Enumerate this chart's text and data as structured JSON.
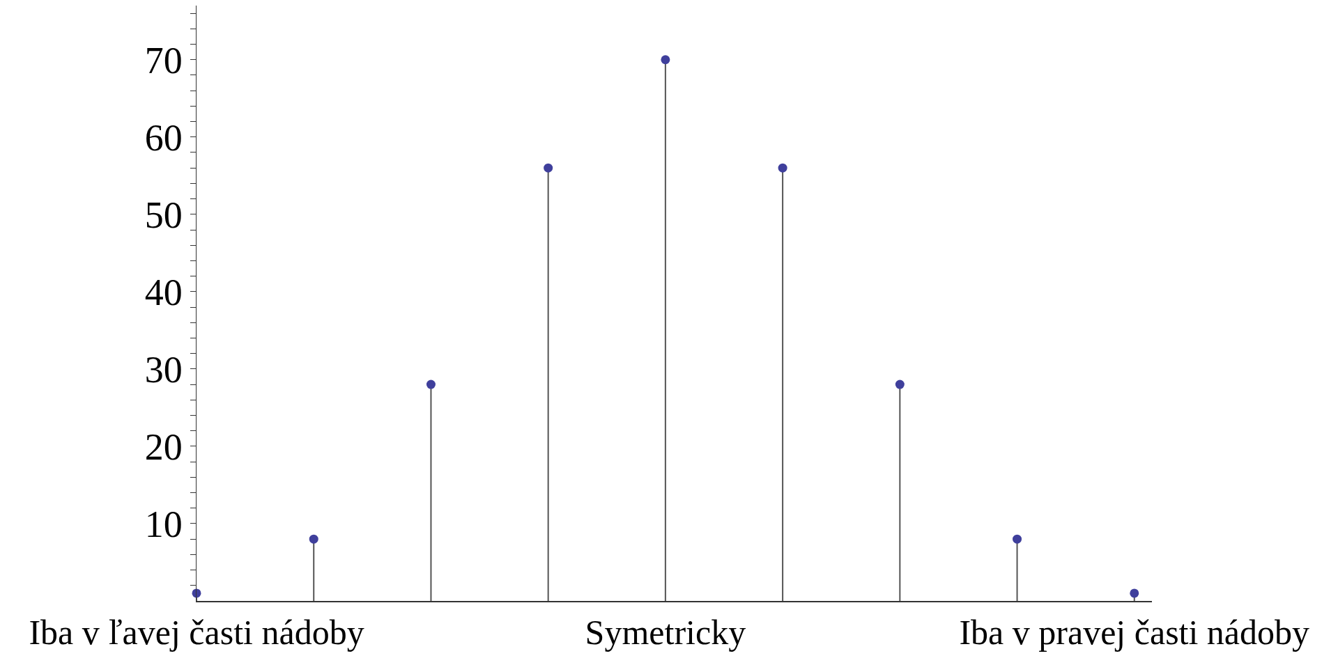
{
  "chart_data": {
    "type": "lollipop",
    "categories": [
      "Iba v ľavej časti nádoby",
      null,
      null,
      null,
      "Symetricky",
      null,
      null,
      null,
      "Iba v pravej časti nádoby"
    ],
    "values": [
      1,
      8,
      28,
      56,
      70,
      56,
      28,
      8,
      1
    ],
    "color": "#3f3f9c",
    "ylim": [
      0,
      77
    ],
    "yticks": [
      {
        "value": 2,
        "label": null
      },
      {
        "value": 4,
        "label": null
      },
      {
        "value": 6,
        "label": null
      },
      {
        "value": 8,
        "label": null
      },
      10,
      {
        "value": 12,
        "label": null
      },
      {
        "value": 14,
        "label": null
      },
      {
        "value": 16,
        "label": null
      },
      {
        "value": 18,
        "label": null
      },
      20,
      {
        "value": 22,
        "label": null
      },
      {
        "value": 24,
        "label": null
      },
      {
        "value": 26,
        "label": null
      },
      {
        "value": 28,
        "label": null
      },
      30,
      {
        "value": 32,
        "label": null
      },
      {
        "value": 34,
        "label": null
      },
      {
        "value": 36,
        "label": null
      },
      {
        "value": 38,
        "label": null
      },
      40,
      {
        "value": 42,
        "label": null
      },
      {
        "value": 44,
        "label": null
      },
      {
        "value": 46,
        "label": null
      },
      {
        "value": 48,
        "label": null
      },
      50,
      {
        "value": 52,
        "label": null
      },
      {
        "value": 54,
        "label": null
      },
      {
        "value": 56,
        "label": null
      },
      {
        "value": 58,
        "label": null
      },
      60,
      {
        "value": 62,
        "label": null
      },
      {
        "value": 64,
        "label": null
      },
      {
        "value": 66,
        "label": null
      },
      {
        "value": 68,
        "label": null
      },
      70,
      {
        "value": 72,
        "label": null
      },
      {
        "value": 74,
        "label": null
      },
      {
        "value": 76,
        "label": null
      }
    ],
    "marker": "circle",
    "grid": false
  }
}
